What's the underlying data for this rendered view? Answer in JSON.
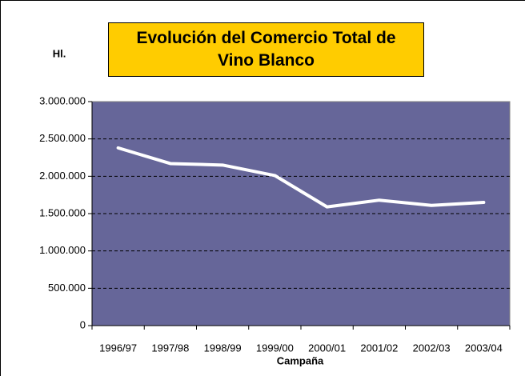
{
  "chart_data": {
    "type": "line",
    "title": "Evolución del Comercio Total de Vino Blanco",
    "ylabel": "Hl.",
    "xlabel": "Campaña",
    "categories": [
      "1996/97",
      "1997/98",
      "1998/99",
      "1999/00",
      "2000/01",
      "2001/02",
      "2002/03",
      "2003/04"
    ],
    "values": [
      2380000,
      2170000,
      2150000,
      2010000,
      1590000,
      1680000,
      1610000,
      1650000
    ],
    "color": "#ffffff",
    "background": "#666699",
    "ylim": [
      0,
      3000000
    ],
    "yticks": [
      0,
      {
        "value": 500000,
        "label": "500.000"
      },
      {
        "value": 1000000,
        "label": "1.000.000"
      },
      {
        "value": 1500000,
        "label": "1.500.000"
      },
      {
        "value": 2000000,
        "label": "2.000.000"
      },
      {
        "value": 2500000,
        "label": "2.500.000"
      },
      {
        "value": 3000000,
        "label": "3.000.000"
      }
    ],
    "grid": true
  }
}
